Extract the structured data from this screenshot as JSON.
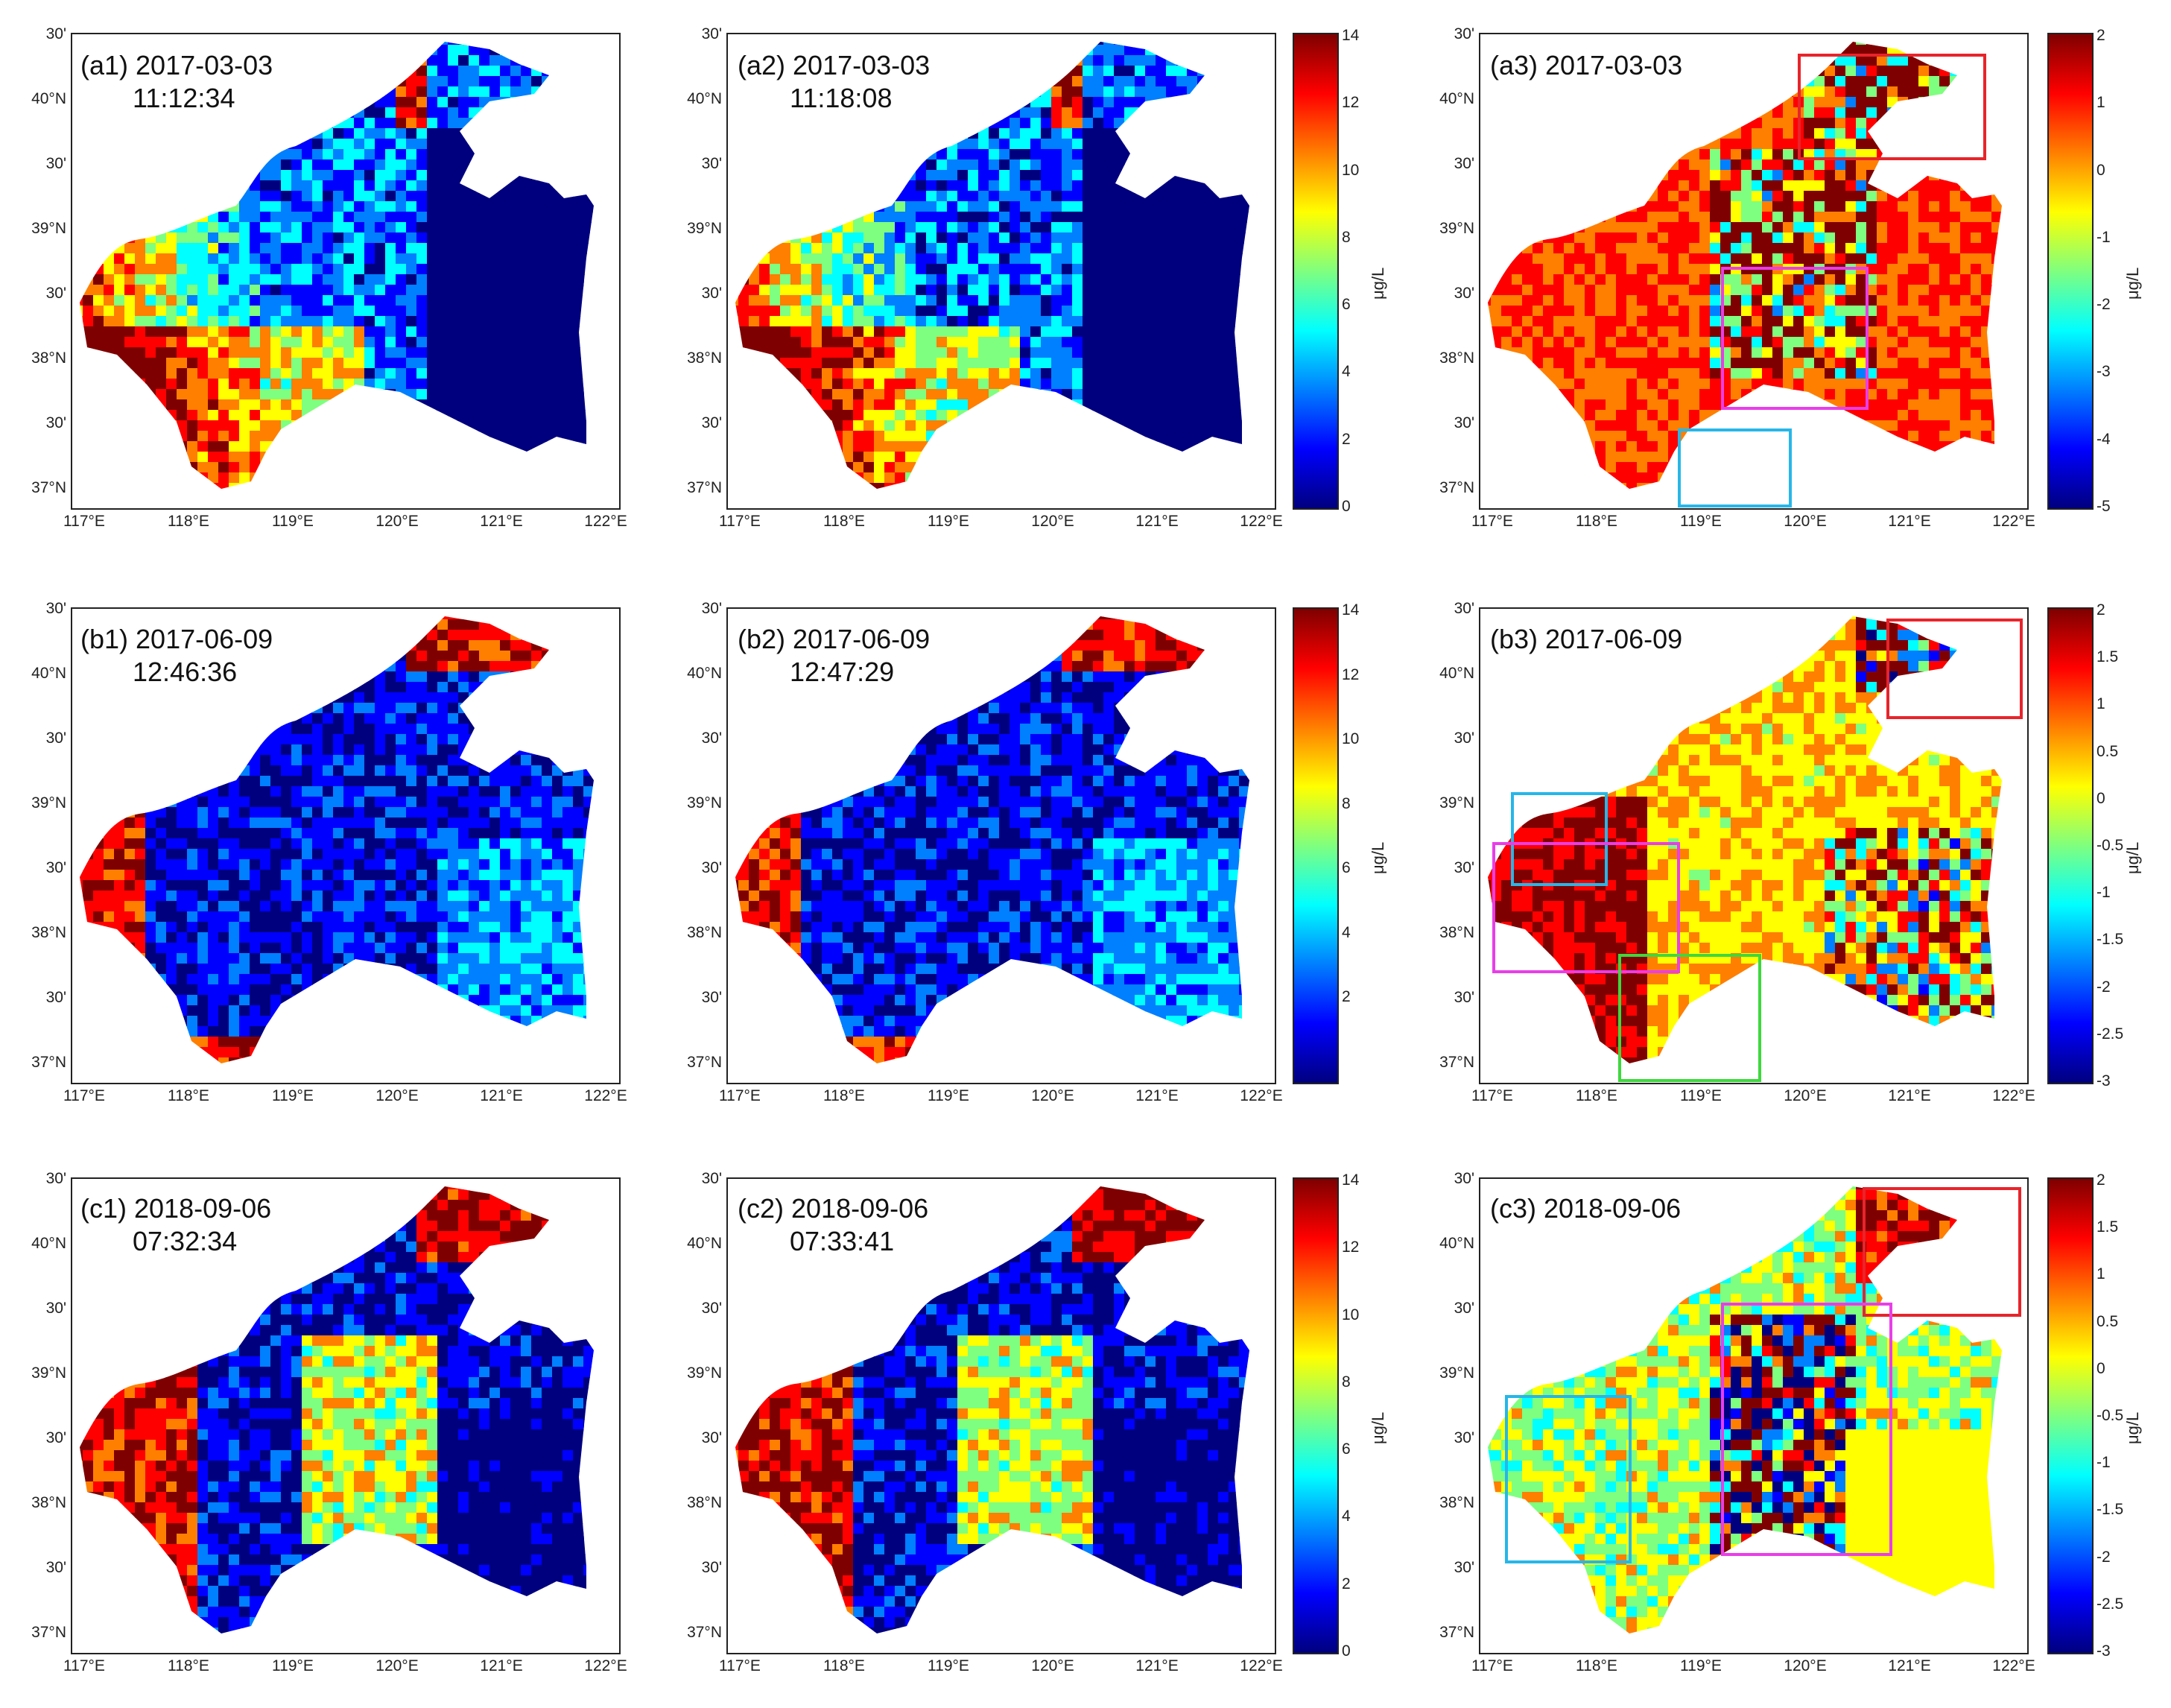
{
  "colors": {
    "jet": [
      "#00007f",
      "#0000ff",
      "#007fff",
      "#00ffff",
      "#7fff7f",
      "#ffff00",
      "#ff7f00",
      "#ff0000",
      "#7f0000"
    ],
    "box_red": "#e8242b",
    "box_magenta": "#e83ee8",
    "box_cyan": "#27b6e8",
    "box_green": "#3ed83e"
  },
  "axes": {
    "x_labels": [
      "117°E",
      "118°E",
      "119°E",
      "120°E",
      "121°E",
      "122°E"
    ],
    "y_labels": [
      "30'",
      "40°N",
      "30'",
      "39°N",
      "30'",
      "38°N",
      "30'",
      "37°N"
    ]
  },
  "colorbars": {
    "chl": {
      "ticks": [
        "14",
        "12",
        "10",
        "8",
        "6",
        "4",
        "2",
        "0"
      ],
      "unit": "μg/L"
    },
    "chl_b": {
      "ticks": [
        "14",
        "12",
        "10",
        "8",
        "6",
        "4",
        "2"
      ],
      "unit": "μg/L"
    },
    "diff_a": {
      "ticks": [
        "2",
        "1",
        "0",
        "-1",
        "-2",
        "-3",
        "-4",
        "-5"
      ],
      "unit": "μg/L"
    },
    "diff_bc": {
      "ticks": [
        "2",
        "1.5",
        "1",
        "0.5",
        "0",
        "-0.5",
        "-1",
        "-1.5",
        "-2",
        "-2.5",
        "-3"
      ],
      "unit": "μg/L"
    }
  },
  "panels": [
    {
      "id": "a1",
      "label": "(a1) 2017-03-03",
      "time": "11:12:34"
    },
    {
      "id": "a2",
      "label": "(a2) 2017-03-03",
      "time": "11:18:08"
    },
    {
      "id": "a3",
      "label": "(a3) 2017-03-03",
      "time": ""
    },
    {
      "id": "b1",
      "label": "(b1) 2017-06-09",
      "time": "12:46:36"
    },
    {
      "id": "b2",
      "label": "(b2) 2017-06-09",
      "time": "12:47:29"
    },
    {
      "id": "b3",
      "label": "(b3) 2017-06-09",
      "time": ""
    },
    {
      "id": "c1",
      "label": "(c1) 2018-09-06",
      "time": "07:32:34"
    },
    {
      "id": "c2",
      "label": "(c2) 2018-09-06",
      "time": "07:33:41"
    },
    {
      "id": "c3",
      "label": "(c3) 2018-09-06",
      "time": ""
    }
  ]
}
